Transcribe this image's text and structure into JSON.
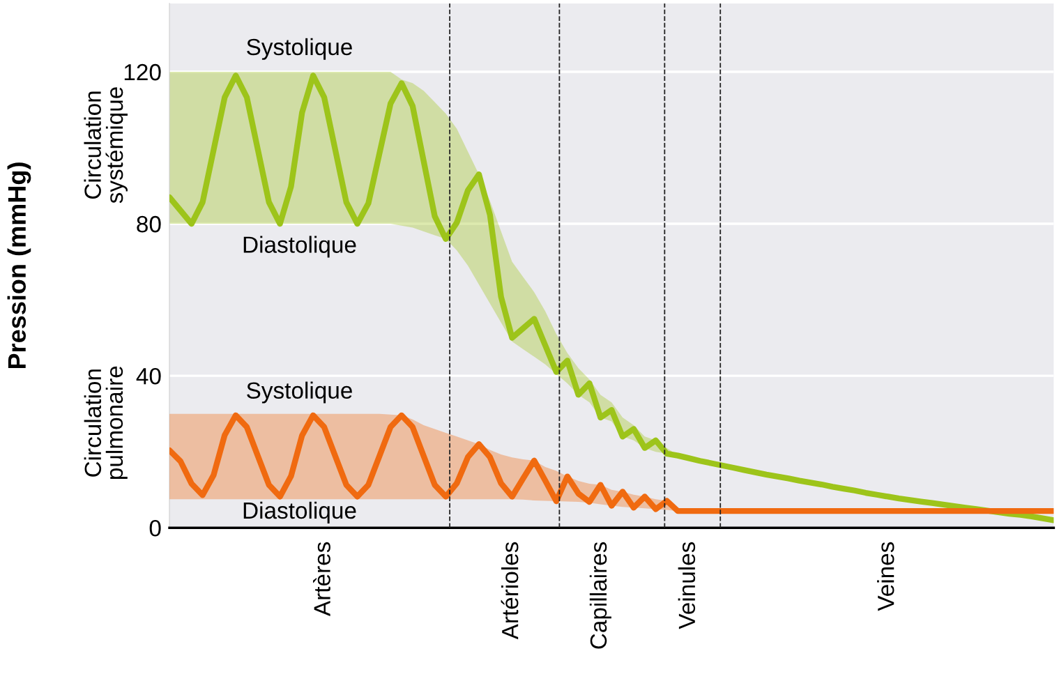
{
  "chart_data": {
    "type": "line",
    "ylabel": "Pression (mmHg)",
    "categories": [
      null,
      null,
      null,
      null,
      null,
      null,
      null,
      null,
      null,
      null,
      null,
      null,
      null,
      null,
      "Artères",
      null,
      null,
      null,
      null,
      null,
      null,
      null,
      null,
      null,
      null,
      null,
      null,
      null,
      null,
      null,
      null,
      "Artérioles",
      null,
      null,
      null,
      null,
      null,
      null,
      null,
      "Capillaires",
      null,
      null,
      null,
      null,
      null,
      null,
      null,
      "Veinules",
      null,
      null,
      null,
      null,
      null,
      null,
      null,
      null,
      null,
      null,
      null,
      null,
      null,
      null,
      null,
      null,
      null,
      "Veines",
      null,
      null,
      null,
      null,
      null,
      null,
      null,
      null,
      null,
      null,
      null,
      null,
      null,
      null,
      null
    ],
    "ylim": [
      0,
      138
    ],
    "yticks": [
      0,
      40,
      80,
      120
    ],
    "grid": "y",
    "legend": false,
    "marker": "none",
    "line_style": "solid",
    "series": [
      {
        "color": "#9dc41a",
        "values": [
          87,
          83.5,
          80,
          85.7,
          99.5,
          113.3,
          119,
          113.3,
          99.5,
          85.7,
          80,
          89.8,
          109.3,
          119,
          113.3,
          99.5,
          85.7,
          80,
          85.4,
          98.5,
          111.6,
          117,
          111,
          96.5,
          82,
          76,
          80.3,
          88.8,
          93,
          82.3,
          60.8,
          50,
          52.5,
          55,
          48,
          41,
          44,
          35,
          38,
          29,
          31,
          24,
          26,
          21,
          23,
          19.5,
          19,
          18.3,
          17.6,
          17,
          16.4,
          15.8,
          15.2,
          14.6,
          14,
          13.5,
          13,
          12.4,
          11.9,
          11.4,
          10.8,
          10.3,
          9.8,
          9.2,
          8.7,
          8.2,
          7.7,
          7.3,
          6.9,
          6.5,
          6.1,
          5.7,
          5.3,
          4.9,
          4.5,
          4.1,
          3.7,
          3.4,
          3.0,
          2.5,
          2
        ],
        "upper": [
          120,
          120,
          120,
          120,
          120,
          120,
          120,
          120,
          120,
          120,
          120,
          120,
          120,
          120,
          120,
          120,
          120,
          120,
          120,
          120,
          120,
          118,
          117,
          115,
          112,
          109,
          105,
          99,
          93,
          86,
          78,
          70,
          66,
          62,
          57,
          51,
          46,
          42,
          39,
          35,
          33,
          29,
          27,
          24,
          23,
          21,
          19,
          null,
          null,
          null,
          null,
          null,
          null,
          null,
          null,
          null,
          null,
          null,
          null,
          null,
          null,
          null,
          null,
          null,
          null,
          null,
          null,
          null,
          null,
          null,
          null,
          null,
          null,
          null,
          null,
          null,
          null,
          null,
          null,
          null,
          null
        ],
        "lower": [
          80,
          80,
          80,
          80,
          80,
          80,
          80,
          80,
          80,
          80,
          80,
          80,
          80,
          80,
          80,
          80,
          80,
          80,
          80,
          80,
          80,
          79.5,
          79,
          78,
          77,
          76,
          73,
          69,
          64,
          59,
          54,
          49,
          47,
          45,
          43,
          40.5,
          38,
          35,
          33,
          29,
          28,
          24,
          23,
          21,
          20,
          19.5,
          19,
          null,
          null,
          null,
          null,
          null,
          null,
          null,
          null,
          null,
          null,
          null,
          null,
          null,
          null,
          null,
          null,
          null,
          null,
          null,
          null,
          null,
          null,
          null,
          null,
          null,
          null,
          null,
          null,
          null,
          null,
          null,
          null,
          null,
          null
        ]
      },
      {
        "color": "#f06a10",
        "values": [
          20.4,
          17.5,
          11.6,
          8.6,
          13.9,
          24.4,
          29.6,
          26.5,
          18.9,
          11.3,
          8.2,
          13.6,
          24.3,
          29.6,
          26.5,
          18.9,
          11.3,
          8.2,
          11.3,
          18.9,
          26.5,
          29.6,
          26.5,
          18.9,
          11.3,
          8.2,
          11.7,
          18.6,
          22,
          18.6,
          11.7,
          8.2,
          13,
          17.7,
          12.4,
          7,
          13.5,
          9,
          6.8,
          11.3,
          5.8,
          9.5,
          5.3,
          8.2,
          4.9,
          7.1,
          4.4,
          4.4,
          4.4,
          4.4,
          4.4,
          4.4,
          4.4,
          4.4,
          4.4,
          4.4,
          4.4,
          4.4,
          4.4,
          4.4,
          4.4,
          4.4,
          4.4,
          4.4,
          4.4,
          4.4,
          4.4,
          4.4,
          4.4,
          4.4,
          4.4,
          4.4,
          4.4,
          4.4,
          4.4,
          4.4,
          4.4,
          4.4,
          4.4,
          4.4,
          4.4
        ],
        "upper": [
          30,
          30,
          30,
          30,
          30,
          30,
          30,
          30,
          30,
          30,
          30,
          30,
          30,
          30,
          30,
          30,
          30,
          30,
          30,
          30,
          29.8,
          29.6,
          28.5,
          27,
          26,
          25,
          24,
          23,
          22,
          20.5,
          19.3,
          18.5,
          18,
          17.7,
          16,
          15,
          13.5,
          12.3,
          11.6,
          11.3,
          10,
          9.5,
          8.7,
          8.2,
          7.5,
          7.1,
          4.4,
          null,
          null,
          null,
          null,
          null,
          null,
          null,
          null,
          null,
          null,
          null,
          null,
          null,
          null,
          null,
          null,
          null,
          null,
          null,
          null,
          null,
          null,
          null,
          null,
          null,
          null,
          null,
          null,
          null,
          null,
          null,
          null,
          null,
          null
        ],
        "lower": [
          7.5,
          7.5,
          7.5,
          7.5,
          7.5,
          7.5,
          7.5,
          7.5,
          7.5,
          7.5,
          7.5,
          7.5,
          7.5,
          7.5,
          7.5,
          7.5,
          7.5,
          7.5,
          7.5,
          7.5,
          7.5,
          7.5,
          7.5,
          7.5,
          7.5,
          7.5,
          7.5,
          7.5,
          7.5,
          7.5,
          7.5,
          7.5,
          7.4,
          7.2,
          7.1,
          7,
          6.9,
          6.8,
          6.6,
          6.2,
          5.8,
          5.5,
          5.3,
          5.1,
          4.9,
          4.7,
          4.4,
          null,
          null,
          null,
          null,
          null,
          null,
          null,
          null,
          null,
          null,
          null,
          null,
          null,
          null,
          null,
          null,
          null,
          null,
          null,
          null,
          null,
          null,
          null,
          null,
          null,
          null,
          null,
          null,
          null,
          null,
          null,
          null,
          null,
          null
        ]
      }
    ],
    "annotations": [
      "Systolique",
      "Diastolique",
      "Systolique",
      "Diastolique",
      "Circulation\nsystémique",
      "Circulation\npulmonaire"
    ]
  }
}
